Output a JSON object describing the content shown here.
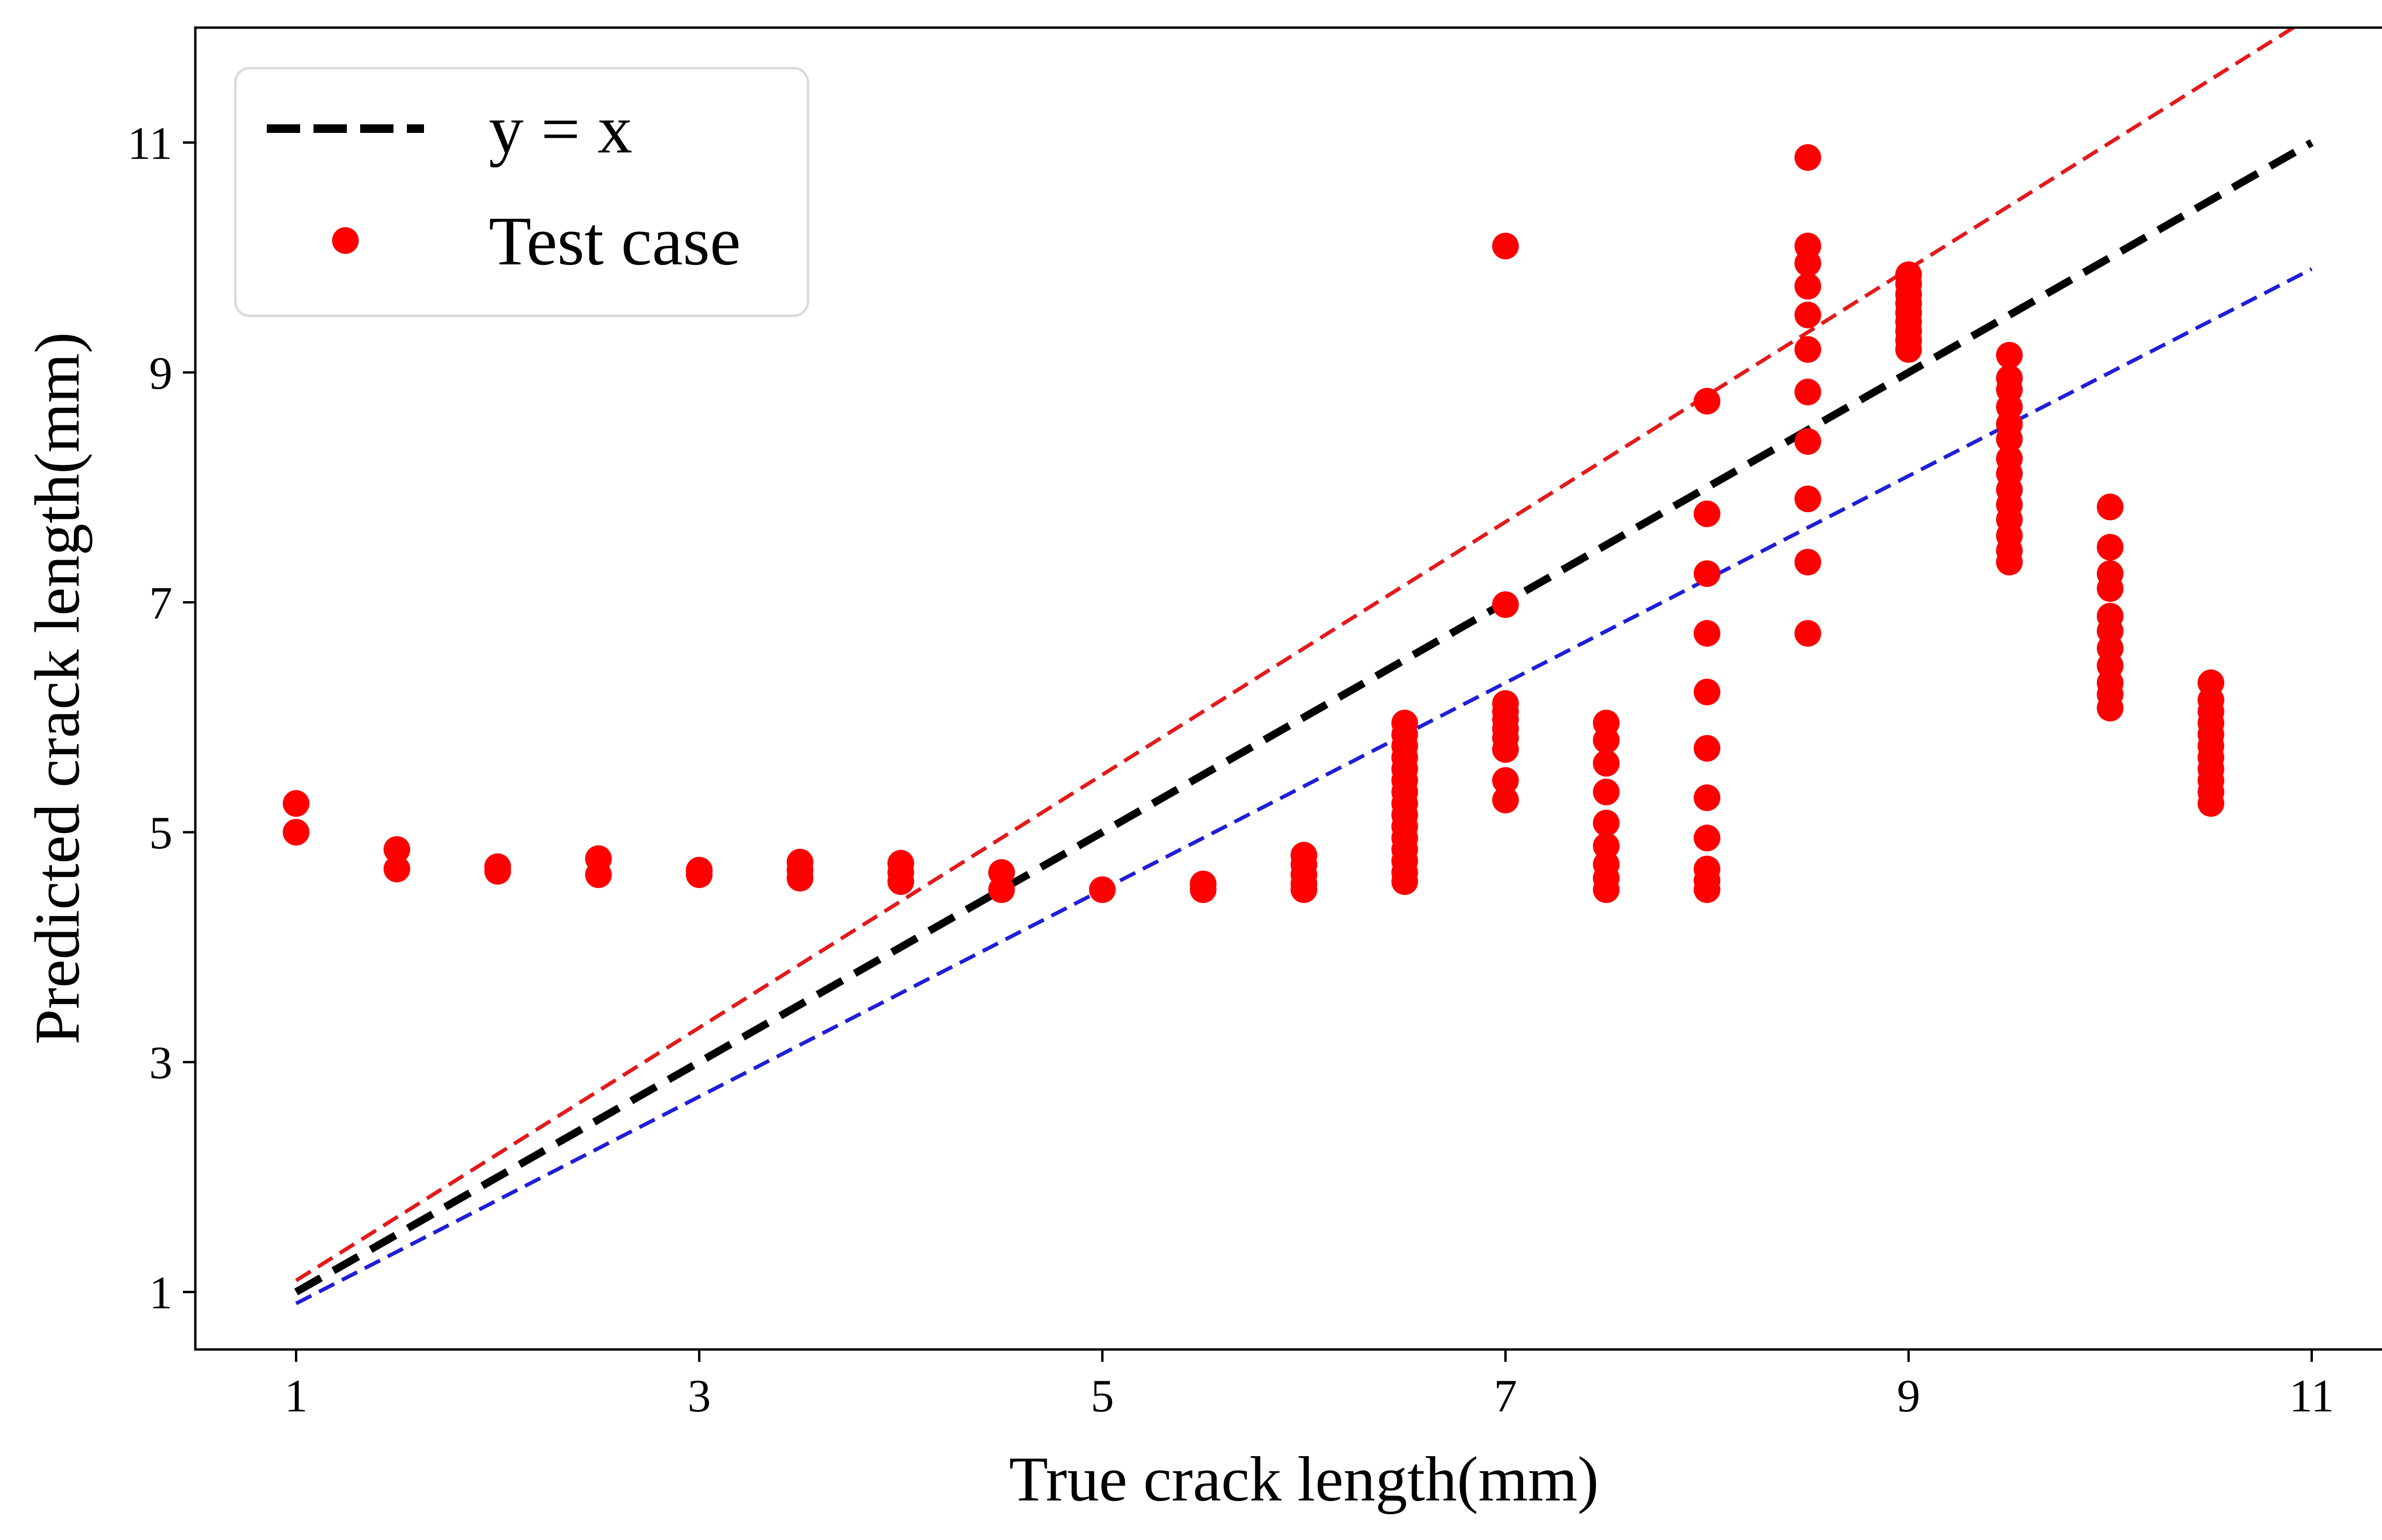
{
  "chart_data": {
    "type": "scatter",
    "title": "",
    "xlabel": "True crack length(mm)",
    "ylabel": "Predicted crack length(mm)",
    "xlim": [
      0.5,
      11.5
    ],
    "ylim": [
      0.5,
      12.0
    ],
    "xticks": [
      1,
      3,
      5,
      7,
      9,
      11
    ],
    "yticks": [
      1,
      3,
      5,
      7,
      9,
      11
    ],
    "tick_labels": {
      "x": [
        "1",
        "3",
        "5",
        "7",
        "9",
        "11"
      ],
      "y": [
        "1",
        "3",
        "5",
        "7",
        "9",
        "11"
      ]
    },
    "grid": false,
    "legend_position": "top-left",
    "legend": {
      "ideal": "y = x",
      "test": "Test case"
    },
    "lines": [
      {
        "role": "ideal",
        "x": [
          1,
          11
        ],
        "y": [
          1,
          11
        ],
        "color": "#000000",
        "dash": "dashed-thick"
      },
      {
        "role": "upper-bound",
        "x": [
          1,
          11
        ],
        "y": [
          1.1,
          12.1
        ],
        "color": "#e31a1c",
        "dash": "dashed"
      },
      {
        "role": "lower-bound",
        "x": [
          1,
          11
        ],
        "y": [
          0.9,
          9.9
        ],
        "color": "#1f1fd6",
        "dash": "dashed"
      }
    ],
    "series": [
      {
        "role": "test",
        "color": "#ff0000",
        "points": [
          [
            1,
            5.25
          ],
          [
            1,
            5.0
          ],
          [
            1.5,
            4.85
          ],
          [
            1.5,
            4.68
          ],
          [
            2,
            4.7
          ],
          [
            2,
            4.66
          ],
          [
            2.5,
            4.77
          ],
          [
            2.5,
            4.63
          ],
          [
            3,
            4.67
          ],
          [
            3,
            4.63
          ],
          [
            3.5,
            4.74
          ],
          [
            3.5,
            4.67
          ],
          [
            3.5,
            4.6
          ],
          [
            4,
            4.73
          ],
          [
            4,
            4.65
          ],
          [
            4,
            4.57
          ],
          [
            4.5,
            4.65
          ],
          [
            4.5,
            4.5
          ],
          [
            5,
            4.5
          ],
          [
            5.5,
            4.55
          ],
          [
            5.5,
            4.5
          ],
          [
            6,
            4.8
          ],
          [
            6,
            4.72
          ],
          [
            6,
            4.63
          ],
          [
            6,
            4.55
          ],
          [
            6,
            4.5
          ],
          [
            6.5,
            5.95
          ],
          [
            6.5,
            5.85
          ],
          [
            6.5,
            5.75
          ],
          [
            6.5,
            5.65
          ],
          [
            6.5,
            5.55
          ],
          [
            6.5,
            5.45
          ],
          [
            6.5,
            5.35
          ],
          [
            6.5,
            5.25
          ],
          [
            6.5,
            5.15
          ],
          [
            6.5,
            5.05
          ],
          [
            6.5,
            4.95
          ],
          [
            6.5,
            4.85
          ],
          [
            6.5,
            4.75
          ],
          [
            6.5,
            4.65
          ],
          [
            6.5,
            4.57
          ],
          [
            7,
            10.1
          ],
          [
            7,
            6.98
          ],
          [
            7,
            6.12
          ],
          [
            7,
            6.05
          ],
          [
            7,
            5.98
          ],
          [
            7,
            5.9
          ],
          [
            7,
            5.82
          ],
          [
            7,
            5.72
          ],
          [
            7,
            5.45
          ],
          [
            7,
            5.28
          ],
          [
            7.5,
            5.95
          ],
          [
            7.5,
            5.8
          ],
          [
            7.5,
            5.6
          ],
          [
            7.5,
            5.35
          ],
          [
            7.5,
            5.08
          ],
          [
            7.5,
            4.88
          ],
          [
            7.5,
            4.72
          ],
          [
            7.5,
            4.6
          ],
          [
            7.5,
            4.5
          ],
          [
            8,
            8.75
          ],
          [
            8,
            7.77
          ],
          [
            8,
            7.25
          ],
          [
            8,
            6.73
          ],
          [
            8,
            6.22
          ],
          [
            8,
            5.73
          ],
          [
            8,
            5.3
          ],
          [
            8,
            4.95
          ],
          [
            8,
            4.68
          ],
          [
            8,
            4.58
          ],
          [
            8,
            4.5
          ],
          [
            8.5,
            10.87
          ],
          [
            8.5,
            10.1
          ],
          [
            8.5,
            9.95
          ],
          [
            8.5,
            9.75
          ],
          [
            8.5,
            9.5
          ],
          [
            8.5,
            9.2
          ],
          [
            8.5,
            8.83
          ],
          [
            8.5,
            8.4
          ],
          [
            8.5,
            7.9
          ],
          [
            8.5,
            7.35
          ],
          [
            8.5,
            6.73
          ],
          [
            9,
            9.85
          ],
          [
            9,
            9.77
          ],
          [
            9,
            9.68
          ],
          [
            9,
            9.6
          ],
          [
            9,
            9.52
          ],
          [
            9,
            9.44
          ],
          [
            9,
            9.36
          ],
          [
            9,
            9.28
          ],
          [
            9,
            9.2
          ],
          [
            9.5,
            9.15
          ],
          [
            9.5,
            8.95
          ],
          [
            9.5,
            8.85
          ],
          [
            9.5,
            8.7
          ],
          [
            9.5,
            8.55
          ],
          [
            9.5,
            8.42
          ],
          [
            9.5,
            8.25
          ],
          [
            9.5,
            8.12
          ],
          [
            9.5,
            7.98
          ],
          [
            9.5,
            7.85
          ],
          [
            9.5,
            7.72
          ],
          [
            9.5,
            7.58
          ],
          [
            9.5,
            7.45
          ],
          [
            9.5,
            7.35
          ],
          [
            10,
            7.83
          ],
          [
            10,
            7.48
          ],
          [
            10,
            7.25
          ],
          [
            10,
            7.12
          ],
          [
            10,
            6.88
          ],
          [
            10,
            6.75
          ],
          [
            10,
            6.6
          ],
          [
            10,
            6.45
          ],
          [
            10,
            6.3
          ],
          [
            10,
            6.2
          ],
          [
            10,
            6.08
          ],
          [
            10.5,
            6.3
          ],
          [
            10.5,
            6.15
          ],
          [
            10.5,
            6.05
          ],
          [
            10.5,
            5.95
          ],
          [
            10.5,
            5.85
          ],
          [
            10.5,
            5.75
          ],
          [
            10.5,
            5.65
          ],
          [
            10.5,
            5.55
          ],
          [
            10.5,
            5.45
          ],
          [
            10.5,
            5.35
          ],
          [
            10.5,
            5.25
          ]
        ]
      }
    ]
  }
}
